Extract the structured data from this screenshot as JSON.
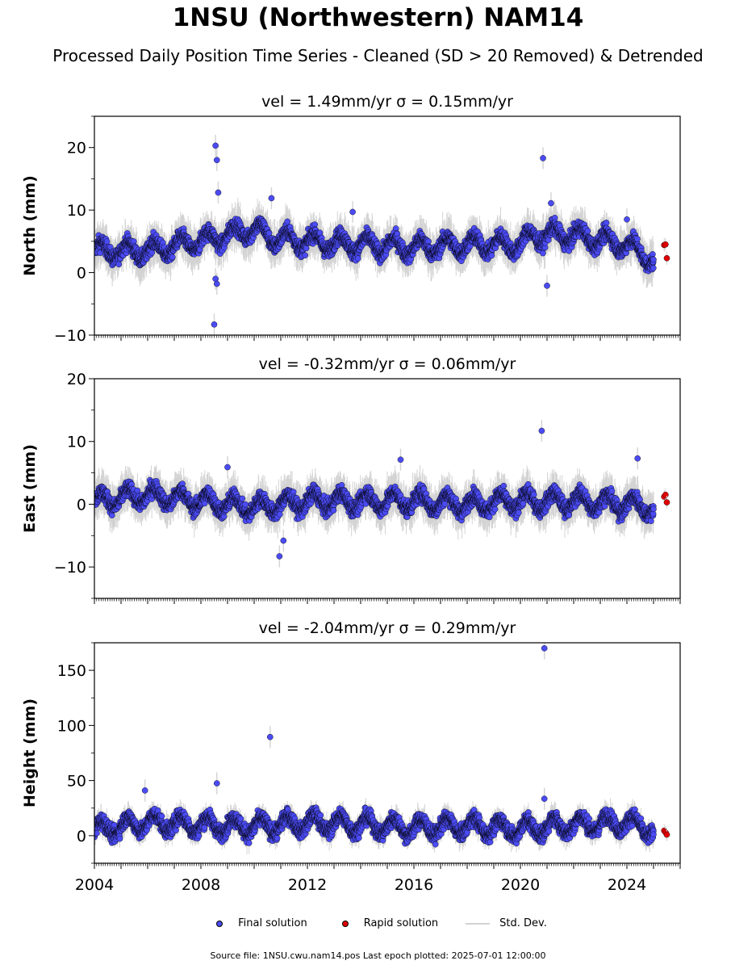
{
  "header": {
    "title": "1NSU (Northwestern) NAM14",
    "subtitle": "Processed Daily Position Time Series - Cleaned (SD > 20 Removed) & Detrended"
  },
  "legend": {
    "final": "Final solution",
    "rapid": "Rapid solution",
    "std": "Std. Dev."
  },
  "footer": {
    "source": "Source file: 1NSU.cwu.nam14.pos  Last epoch plotted: 2025-07-01 12:00:00"
  },
  "colors": {
    "final": "#4b4bf5",
    "rapid": "#e00000",
    "stddev": "#d3d3d3"
  },
  "chart_data": [
    {
      "type": "scatter",
      "title": "vel = 1.49mm/yr   σ = 0.15mm/yr",
      "ylabel": "North (mm)",
      "xlim": [
        2004,
        2026
      ],
      "ylim": [
        -10,
        25
      ],
      "yticks": [
        -10,
        0,
        10,
        20
      ],
      "xticks": [
        2004,
        2008,
        2012,
        2016,
        2020,
        2024
      ],
      "baseline": [
        [
          2004,
          3.5
        ],
        [
          2006,
          3.5
        ],
        [
          2008,
          5
        ],
        [
          2010,
          7
        ],
        [
          2010.7,
          5.5
        ],
        [
          2012,
          5
        ],
        [
          2014,
          4.5
        ],
        [
          2016,
          4
        ],
        [
          2018,
          4.5
        ],
        [
          2020,
          4.5
        ],
        [
          2020.5,
          6
        ],
        [
          2022,
          6
        ],
        [
          2024,
          4.5
        ],
        [
          2025,
          2
        ]
      ],
      "outliers_final": [
        [
          2008.55,
          20.3
        ],
        [
          2008.6,
          18
        ],
        [
          2008.65,
          12.8
        ],
        [
          2008.55,
          -1
        ],
        [
          2008.6,
          -1.8
        ],
        [
          2008.5,
          -8.3
        ],
        [
          2010.65,
          11.9
        ],
        [
          2013.7,
          9.7
        ],
        [
          2020.85,
          18.3
        ],
        [
          2021.0,
          -2.1
        ],
        [
          2021.15,
          11.1
        ],
        [
          2024.0,
          8.5
        ]
      ],
      "rapid": [
        [
          2025.4,
          4.4
        ],
        [
          2025.45,
          4.5
        ],
        [
          2025.5,
          2.3
        ]
      ]
    },
    {
      "type": "scatter",
      "title": "vel = -0.32mm/yr   σ = 0.06mm/yr",
      "ylabel": "East (mm)",
      "xlim": [
        2004,
        2026
      ],
      "ylim": [
        -15,
        20
      ],
      "yticks": [
        -10,
        0,
        10,
        20
      ],
      "xticks": [
        2004,
        2008,
        2012,
        2016,
        2020,
        2024
      ],
      "baseline": [
        [
          2004,
          0.5
        ],
        [
          2006,
          1.5
        ],
        [
          2008,
          0.5
        ],
        [
          2010,
          -0.5
        ],
        [
          2012,
          0.5
        ],
        [
          2014,
          0.5
        ],
        [
          2016,
          0.5
        ],
        [
          2018,
          0
        ],
        [
          2020,
          0.5
        ],
        [
          2022,
          0.5
        ],
        [
          2024,
          0
        ],
        [
          2025,
          -0.5
        ]
      ],
      "outliers_final": [
        [
          2009.0,
          5.9
        ],
        [
          2010.95,
          -8.3
        ],
        [
          2011.1,
          -5.8
        ],
        [
          2015.5,
          7.1
        ],
        [
          2020.8,
          11.7
        ],
        [
          2024.4,
          7.3
        ]
      ],
      "rapid": [
        [
          2025.4,
          1.2
        ],
        [
          2025.45,
          1.5
        ],
        [
          2025.5,
          0.3
        ]
      ]
    },
    {
      "type": "scatter",
      "title": "vel = -2.04mm/yr   σ = 0.29mm/yr",
      "ylabel": "Height (mm)",
      "xlim": [
        2004,
        2026
      ],
      "ylim": [
        -25,
        175
      ],
      "yticks": [
        0,
        50,
        100,
        150
      ],
      "xticks": [
        2004,
        2008,
        2012,
        2016,
        2020,
        2024
      ],
      "baseline": [
        [
          2004,
          5
        ],
        [
          2006,
          12
        ],
        [
          2008,
          10
        ],
        [
          2010,
          8
        ],
        [
          2012,
          12
        ],
        [
          2014,
          10
        ],
        [
          2016,
          7
        ],
        [
          2018,
          9
        ],
        [
          2020,
          6
        ],
        [
          2022,
          10
        ],
        [
          2024,
          12
        ],
        [
          2025,
          5
        ]
      ],
      "outliers_final": [
        [
          2005.9,
          41
        ],
        [
          2008.6,
          47.5
        ],
        [
          2010.6,
          89.5
        ],
        [
          2020.9,
          170
        ],
        [
          2020.9,
          33.5
        ]
      ],
      "rapid": [
        [
          2025.4,
          4.5
        ],
        [
          2025.45,
          3
        ],
        [
          2025.5,
          1
        ]
      ]
    }
  ]
}
